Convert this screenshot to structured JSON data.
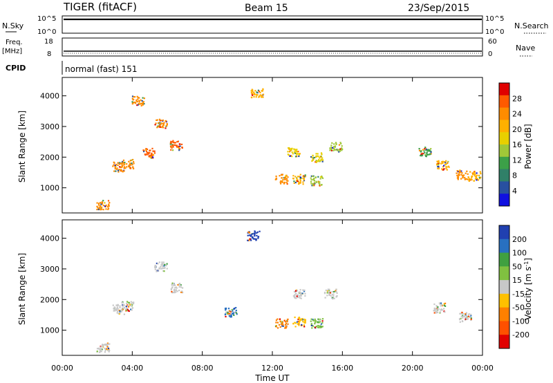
{
  "header": {
    "radar": "TIGER (fitACF)",
    "beam": "Beam 15",
    "date": "23/Sep/2015"
  },
  "top_panels": {
    "nsky_label": "N.Sky",
    "nsky_ticks": [
      "10^5",
      "10^0"
    ],
    "nsearch_label": "N.Search",
    "nsearch_ticks": [
      "10^5",
      "10^0"
    ],
    "freq_label_1": "Freq.",
    "freq_label_2": "[MHz]",
    "freq_ticks": [
      "18",
      "8"
    ],
    "nave_label": "Nave",
    "nave_ticks": [
      "60",
      "0"
    ],
    "cpid_label": "CPID",
    "cpid_value": "normal (fast) 151"
  },
  "power_colorbar": {
    "label": "Power [dB]",
    "ticks": [
      "28",
      "24",
      "20",
      "16",
      "12",
      "8",
      "4"
    ],
    "colors": [
      "#e00000",
      "#ff5a00",
      "#ff8c00",
      "#ffb000",
      "#e8d000",
      "#a0c838",
      "#3ca048",
      "#308068",
      "#2850a0",
      "#1010e0"
    ]
  },
  "velocity_colorbar": {
    "label": "Velocity [m s",
    "label_sup": "-1",
    "label_end": "]",
    "ticks": [
      "200",
      "100",
      "50",
      "15",
      "-15",
      "-50",
      "-100",
      "-200"
    ],
    "colors": [
      "#2040b0",
      "#2870c0",
      "#40a040",
      "#80c040",
      "#c8c8c8",
      "#ffc000",
      "#ff8000",
      "#ff5000",
      "#e00000"
    ]
  },
  "axes": {
    "ylabel": "Slant Range [km]",
    "yticks": [
      "4000",
      "3000",
      "2000",
      "1000"
    ],
    "xticks": [
      "00:00",
      "04:00",
      "08:00",
      "12:00",
      "16:00",
      "20:00",
      "00:00"
    ],
    "xlabel": "Time UT"
  },
  "chart_data": [
    {
      "type": "heatmap",
      "title": "",
      "ylabel": "Slant Range [km]",
      "xlabel": "Time UT",
      "x_range": [
        0,
        24
      ],
      "ylim": [
        180,
        4600
      ],
      "colorbar": "Power [dB]",
      "clim": [
        0,
        32
      ],
      "echoes": [
        {
          "t": 2.3,
          "range": 450,
          "value": 26
        },
        {
          "t": 3.2,
          "range": 1700,
          "value": 24
        },
        {
          "t": 3.7,
          "range": 1800,
          "value": 26
        },
        {
          "t": 4.3,
          "range": 3850,
          "value": 26
        },
        {
          "t": 4.9,
          "range": 2150,
          "value": 28
        },
        {
          "t": 5.6,
          "range": 3100,
          "value": 26
        },
        {
          "t": 6.5,
          "range": 2400,
          "value": 28
        },
        {
          "t": 11.1,
          "range": 4100,
          "value": 20
        },
        {
          "t": 12.5,
          "range": 1300,
          "value": 26
        },
        {
          "t": 13.5,
          "range": 1300,
          "value": 20
        },
        {
          "t": 14.5,
          "range": 1250,
          "value": 14
        },
        {
          "t": 13.2,
          "range": 2200,
          "value": 18
        },
        {
          "t": 14.5,
          "range": 2000,
          "value": 18
        },
        {
          "t": 15.6,
          "range": 2350,
          "value": 14
        },
        {
          "t": 20.7,
          "range": 2200,
          "value": 12
        },
        {
          "t": 21.7,
          "range": 1750,
          "value": 20
        },
        {
          "t": 22.8,
          "range": 1450,
          "value": 24
        },
        {
          "t": 23.5,
          "range": 1400,
          "value": 22
        }
      ]
    },
    {
      "type": "heatmap",
      "title": "",
      "ylabel": "Slant Range [km]",
      "xlabel": "Time UT",
      "x_range": [
        0,
        24
      ],
      "ylim": [
        180,
        4600
      ],
      "colorbar": "Velocity [m s-1]",
      "clim": [
        -200,
        200
      ],
      "echoes": [
        {
          "t": 2.3,
          "range": 450,
          "value": 0
        },
        {
          "t": 3.2,
          "range": 1700,
          "value": 0
        },
        {
          "t": 3.7,
          "range": 1800,
          "value": 0
        },
        {
          "t": 5.6,
          "range": 3100,
          "value": 0
        },
        {
          "t": 6.5,
          "range": 2400,
          "value": 0
        },
        {
          "t": 9.6,
          "range": 1600,
          "value": 150
        },
        {
          "t": 10.9,
          "range": 4100,
          "value": 200
        },
        {
          "t": 12.5,
          "range": 1250,
          "value": -100
        },
        {
          "t": 13.5,
          "range": 1300,
          "value": -60
        },
        {
          "t": 14.5,
          "range": 1250,
          "value": 60
        },
        {
          "t": 13.5,
          "range": 2200,
          "value": 0
        },
        {
          "t": 15.3,
          "range": 2200,
          "value": 0
        },
        {
          "t": 21.5,
          "range": 1750,
          "value": 0
        },
        {
          "t": 23.0,
          "range": 1450,
          "value": 0
        }
      ]
    }
  ]
}
